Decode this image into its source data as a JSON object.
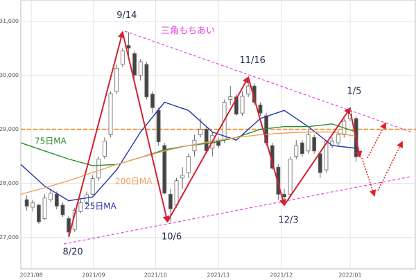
{
  "chart_data": {
    "type": "candlestick",
    "xlim": [
      0,
      132
    ],
    "xticks": [
      {
        "value": 3.5,
        "label": "2021/08"
      },
      {
        "value": 24.3,
        "label": "2021/09"
      },
      {
        "value": 45,
        "label": "2021/10"
      },
      {
        "value": 66,
        "label": "2021/11"
      },
      {
        "value": 87,
        "label": "2021/12"
      },
      {
        "value": 110,
        "label": "2022/01"
      }
    ],
    "ylim": [
      26420,
      31390
    ],
    "yticks": [
      {
        "value": 27000,
        "label": "27,000"
      },
      {
        "value": 28000,
        "label": "28,000"
      },
      {
        "value": 29000,
        "label": "29,000"
      },
      {
        "value": 30000,
        "label": "30,000"
      },
      {
        "value": 31000,
        "label": "31,000"
      }
    ],
    "grid": true,
    "up_color": "#ffffff",
    "down_color": "#444444",
    "wick_color": "#666666",
    "x": [
      2,
      4,
      6,
      8,
      10,
      12,
      14,
      16,
      18,
      20,
      22,
      24,
      26,
      28,
      30,
      32,
      34,
      36,
      38,
      40,
      42,
      44,
      46,
      48,
      50,
      52,
      54,
      56,
      58,
      60,
      62,
      64,
      66,
      68,
      70,
      72,
      74,
      76,
      78,
      80,
      82,
      84,
      86,
      88,
      90,
      92,
      94,
      96,
      98,
      100,
      102,
      104,
      106,
      108,
      110,
      112
    ],
    "ohlc": [
      [
        27700,
        27780,
        27500,
        27580
      ],
      [
        27560,
        27700,
        27480,
        27640
      ],
      [
        27600,
        27620,
        27250,
        27290
      ],
      [
        27350,
        27800,
        27330,
        27730
      ],
      [
        27700,
        27900,
        27650,
        27820
      ],
      [
        27800,
        27850,
        27520,
        27580
      ],
      [
        27600,
        27650,
        27380,
        27420
      ],
      [
        27350,
        27400,
        27010,
        27100
      ],
      [
        27150,
        27550,
        27100,
        27500
      ],
      [
        27480,
        27700,
        27450,
        27640
      ],
      [
        27650,
        27850,
        27600,
        27790
      ],
      [
        27800,
        28150,
        27780,
        28090
      ],
      [
        28100,
        28500,
        28050,
        28450
      ],
      [
        28500,
        28850,
        28450,
        28780
      ],
      [
        28900,
        29700,
        28850,
        29660
      ],
      [
        29700,
        30200,
        29650,
        30130
      ],
      [
        30200,
        30500,
        30150,
        30450
      ],
      [
        30550,
        30795,
        30300,
        30500
      ],
      [
        30400,
        30450,
        29950,
        30000
      ],
      [
        30000,
        30300,
        29900,
        30250
      ],
      [
        30200,
        30250,
        29550,
        29600
      ],
      [
        29650,
        29700,
        29300,
        29400
      ],
      [
        29350,
        29400,
        28700,
        28770
      ],
      [
        28700,
        28750,
        27800,
        27820
      ],
      [
        27800,
        27900,
        27293,
        27530
      ],
      [
        27600,
        28100,
        27550,
        28050
      ],
      [
        28100,
        28300,
        27900,
        28150
      ],
      [
        28200,
        28550,
        28100,
        28500
      ],
      [
        28600,
        28900,
        28500,
        28800
      ],
      [
        28900,
        29200,
        28850,
        29000
      ],
      [
        29000,
        29050,
        28550,
        28600
      ],
      [
        28650,
        28950,
        28500,
        28890
      ],
      [
        28800,
        28850,
        28650,
        28700
      ],
      [
        28800,
        29550,
        28750,
        29500
      ],
      [
        29550,
        29800,
        29450,
        29600
      ],
      [
        29600,
        29650,
        29250,
        29280
      ],
      [
        29300,
        29700,
        29250,
        29610
      ],
      [
        29650,
        29960,
        29600,
        29800
      ],
      [
        29800,
        29850,
        29450,
        29500
      ],
      [
        29450,
        29500,
        29250,
        29300
      ],
      [
        29250,
        29300,
        28700,
        28750
      ],
      [
        28700,
        28750,
        28250,
        28280
      ],
      [
        28300,
        28350,
        27700,
        27800
      ],
      [
        27800,
        27900,
        27600,
        27750
      ],
      [
        27800,
        28500,
        27750,
        28450
      ],
      [
        28500,
        28800,
        28450,
        28700
      ],
      [
        28750,
        28800,
        28500,
        28550
      ],
      [
        28600,
        29000,
        28550,
        28900
      ],
      [
        28850,
        28900,
        28550,
        28600
      ],
      [
        28550,
        28600,
        28100,
        28200
      ],
      [
        28250,
        28800,
        28200,
        28780
      ],
      [
        28700,
        28850,
        28650,
        28780
      ],
      [
        28750,
        29000,
        28700,
        28900
      ],
      [
        28900,
        29200,
        28850,
        29150
      ],
      [
        29200,
        29390,
        29150,
        29330
      ],
      [
        29200,
        29250,
        28400,
        28490
      ]
    ],
    "series": [
      {
        "name": "25日MA",
        "color": "#2233aa",
        "x": [
          0,
          8,
          16,
          24,
          32,
          40,
          48,
          56,
          64,
          72,
          80,
          88,
          96,
          104,
          112
        ],
        "values": [
          28350,
          27950,
          27680,
          27750,
          28250,
          28950,
          29500,
          29350,
          28950,
          28800,
          29200,
          29350,
          29050,
          28700,
          28650
        ]
      },
      {
        "name": "75日MA",
        "color": "#2e8b2e",
        "x": [
          0,
          8,
          16,
          24,
          32,
          40,
          48,
          56,
          64,
          72,
          80,
          88,
          96,
          104,
          112
        ],
        "values": [
          28750,
          28600,
          28450,
          28330,
          28350,
          28480,
          28620,
          28700,
          28750,
          28850,
          29000,
          29050,
          29050,
          29100,
          28950
        ]
      },
      {
        "name": "200日MA",
        "color": "#f0a060",
        "x": [
          0,
          8,
          16,
          24,
          32,
          40,
          48,
          56,
          64,
          72,
          80,
          88,
          96,
          104,
          112
        ],
        "values": [
          27800,
          27920,
          28050,
          28200,
          28350,
          28480,
          28600,
          28700,
          28780,
          28850,
          28900,
          28930,
          28950,
          28950,
          28870
        ]
      }
    ],
    "reference_line": 29000,
    "annotations": [
      {
        "text": "8/20",
        "x": 16,
        "y": 27010
      },
      {
        "text": "9/14",
        "x": 34,
        "y": 30795
      },
      {
        "text": "10/6",
        "x": 49,
        "y": 27293
      },
      {
        "text": "11/16",
        "x": 76,
        "y": 29960
      },
      {
        "text": "12/3",
        "x": 88,
        "y": 27600
      },
      {
        "text": "1/5",
        "x": 110,
        "y": 29390
      }
    ],
    "pattern_label": "三角もちあい"
  }
}
